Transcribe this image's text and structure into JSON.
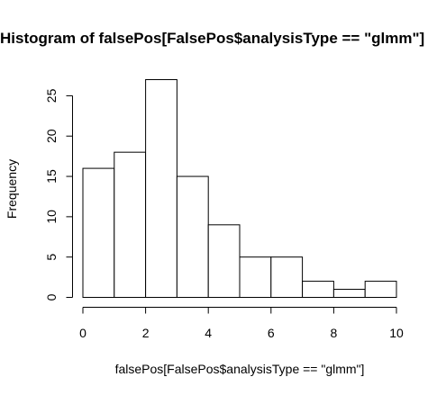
{
  "chart_data": {
    "type": "bar",
    "title": "Histogram of falsePos[FalsePos$analysisType == \"glmm\"]",
    "xlabel": "falsePos[FalsePos$analysisType == \"glmm\"]",
    "ylabel": "Frequency",
    "bin_edges": [
      0,
      1,
      2,
      3,
      4,
      5,
      6,
      7,
      8,
      9,
      10
    ],
    "values": [
      16,
      18,
      27,
      15,
      9,
      5,
      5,
      2,
      1,
      2
    ],
    "xlim": [
      0,
      10
    ],
    "ylim": [
      0,
      27
    ],
    "x_ticks": [
      0,
      2,
      4,
      6,
      8,
      10
    ],
    "y_ticks": [
      0,
      5,
      10,
      15,
      20,
      25
    ],
    "grid": false,
    "colors": {
      "bar_fill": "#ffffff",
      "bar_stroke": "#000000"
    }
  }
}
